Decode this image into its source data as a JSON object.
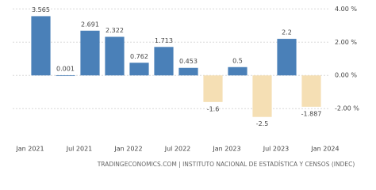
{
  "chart_data": {
    "type": "bar",
    "categories": [
      null,
      null,
      null,
      null,
      null,
      null,
      null,
      null,
      null,
      null,
      null,
      null
    ],
    "values": [
      3.565,
      0.001,
      2.691,
      2.322,
      0.762,
      1.713,
      0.453,
      -1.6,
      0.5,
      -2.5,
      2.2,
      -1.887
    ],
    "color": "#4a80b8",
    "negative_color": "#f5dfb4",
    "xtick_labels": [
      "Jan 2021",
      "Jul 2021",
      "Jan 2022",
      "Jul 2022",
      "Jan 2023",
      "Jul 2023",
      "Jan 2024"
    ],
    "ylim": [
      -3.8,
      4.3
    ],
    "yticks": [
      {
        "value": -2,
        "label": "-2.00 %"
      },
      {
        "value": 0,
        "label": "0.00 %"
      },
      {
        "value": 2,
        "label": "2.00 %"
      },
      {
        "value": 4,
        "label": "4.00 %"
      }
    ],
    "grid": true,
    "source": "TRADINGECONOMICS.COM | INSTITUTO NACIONAL DE ESTADÍSTICA Y CENSOS (INDEC)"
  }
}
